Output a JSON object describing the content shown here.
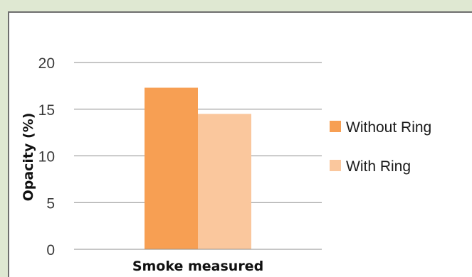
{
  "chart_data": {
    "type": "bar",
    "categories": [
      "Smoke measured"
    ],
    "series": [
      {
        "name": "Without Ring",
        "values": [
          17.3
        ],
        "color": "#f79f53"
      },
      {
        "name": "With Ring",
        "values": [
          14.5
        ],
        "color": "#fac79d"
      }
    ],
    "xlabel": "Smoke measured",
    "ylabel": "Opacity (%)",
    "ylim": [
      0,
      20
    ],
    "yticks": [
      0,
      5,
      10,
      15,
      20
    ],
    "ytick_labels": [
      "0",
      "5",
      "10",
      "15",
      "20"
    ],
    "grid": true,
    "legend": "right"
  }
}
